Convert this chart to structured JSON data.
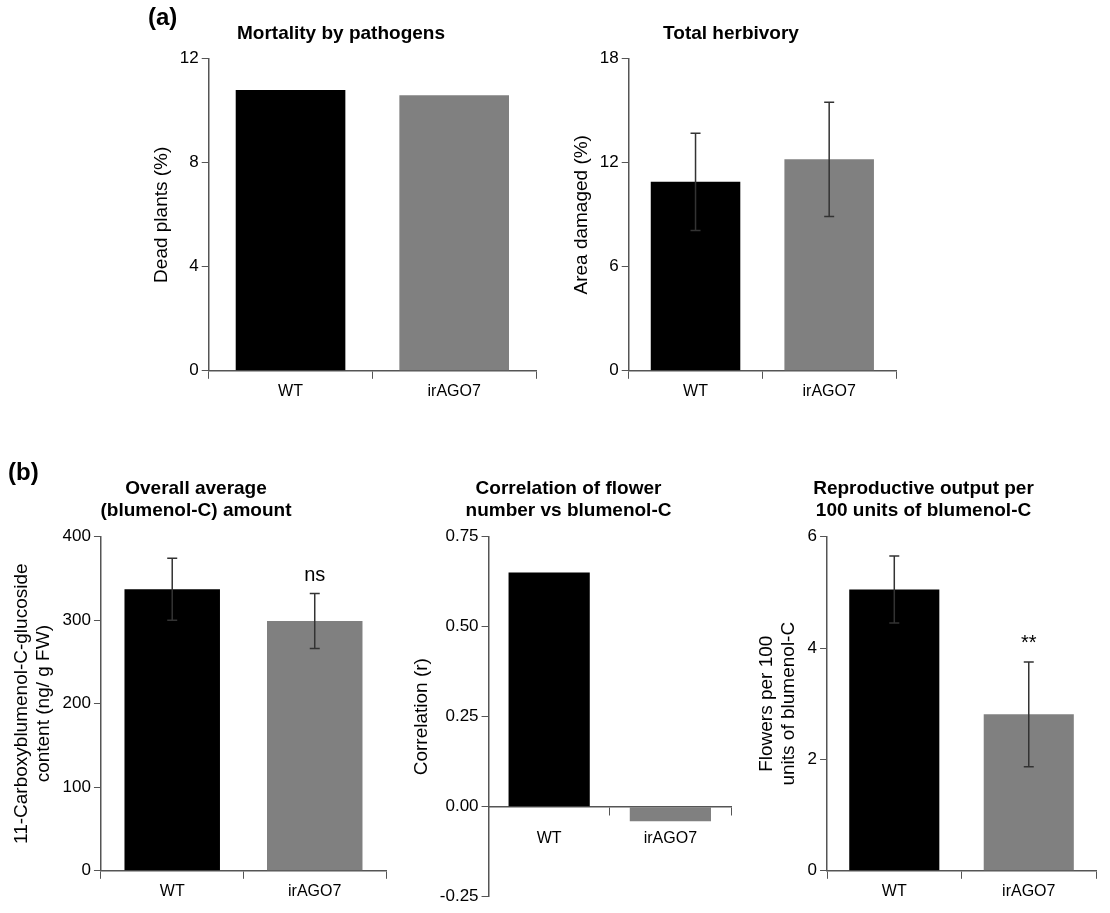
{
  "chart_data": [
    {
      "type": "bar",
      "title": "Mortality by pathogens",
      "ylabel": "Dead plants (%)",
      "categories": [
        "WT",
        "irAGO7"
      ],
      "values": [
        10.8,
        10.6
      ],
      "colors": [
        "#000000",
        "#808080"
      ],
      "ylim": [
        0,
        12
      ],
      "yticks": [
        0,
        4,
        8,
        12
      ],
      "grid": false,
      "legend": false,
      "annotations": [
        "(a)"
      ]
    },
    {
      "type": "bar",
      "title": "Total herbivory",
      "ylabel": "Area damaged (%)",
      "categories": [
        "WT",
        "irAGO7"
      ],
      "values": [
        10.9,
        12.2
      ],
      "errors": [
        2.8,
        3.3
      ],
      "colors": [
        "#000000",
        "#808080"
      ],
      "ylim": [
        0,
        18
      ],
      "yticks": [
        0,
        6,
        12,
        18
      ],
      "grid": false,
      "legend": false
    },
    {
      "type": "bar",
      "title": "Overall average (blumenol-C) amount",
      "ylabel": "11-Carboxyblumenol-C-glucoside content (ng/ g FW)",
      "categories": [
        "WT",
        "irAGO7"
      ],
      "values": [
        337,
        299
      ],
      "errors": [
        37,
        33
      ],
      "colors": [
        "#000000",
        "#808080"
      ],
      "ylim": [
        0,
        400
      ],
      "yticks": [
        0,
        100,
        200,
        300,
        400
      ],
      "grid": false,
      "legend": false,
      "annotations": [
        "(b)",
        {
          "text": "ns",
          "x": "irAGO7",
          "y": 332
        }
      ]
    },
    {
      "type": "bar",
      "title": "Correlation of flower number vs blumenol-C",
      "ylabel": "Correlation (r)",
      "categories": [
        "WT",
        "irAGO7"
      ],
      "values": [
        0.65,
        -0.04
      ],
      "colors": [
        "#000000",
        "#808080"
      ],
      "ylim": [
        -0.25,
        0.75
      ],
      "yticks": [
        -0.25,
        {
          "value": 0,
          "label": "0.00"
        },
        0.25,
        {
          "value": 0.5,
          "label": "0.50"
        },
        0.75
      ],
      "grid": false,
      "legend": false
    },
    {
      "type": "bar",
      "title": "Reproductive output per 100 units of blumenol-C",
      "ylabel": "Flowers per 100 units of blumenol-C",
      "categories": [
        "WT",
        "irAGO7"
      ],
      "values": [
        5.05,
        2.81
      ],
      "errors": [
        0.6,
        0.94
      ],
      "colors": [
        "#000000",
        "#808080"
      ],
      "ylim": [
        0,
        6
      ],
      "yticks": [
        0,
        2,
        4,
        6
      ],
      "grid": false,
      "legend": false,
      "annotations": [
        {
          "text": "**",
          "x": "irAGO7",
          "y": 3.75
        }
      ]
    }
  ]
}
